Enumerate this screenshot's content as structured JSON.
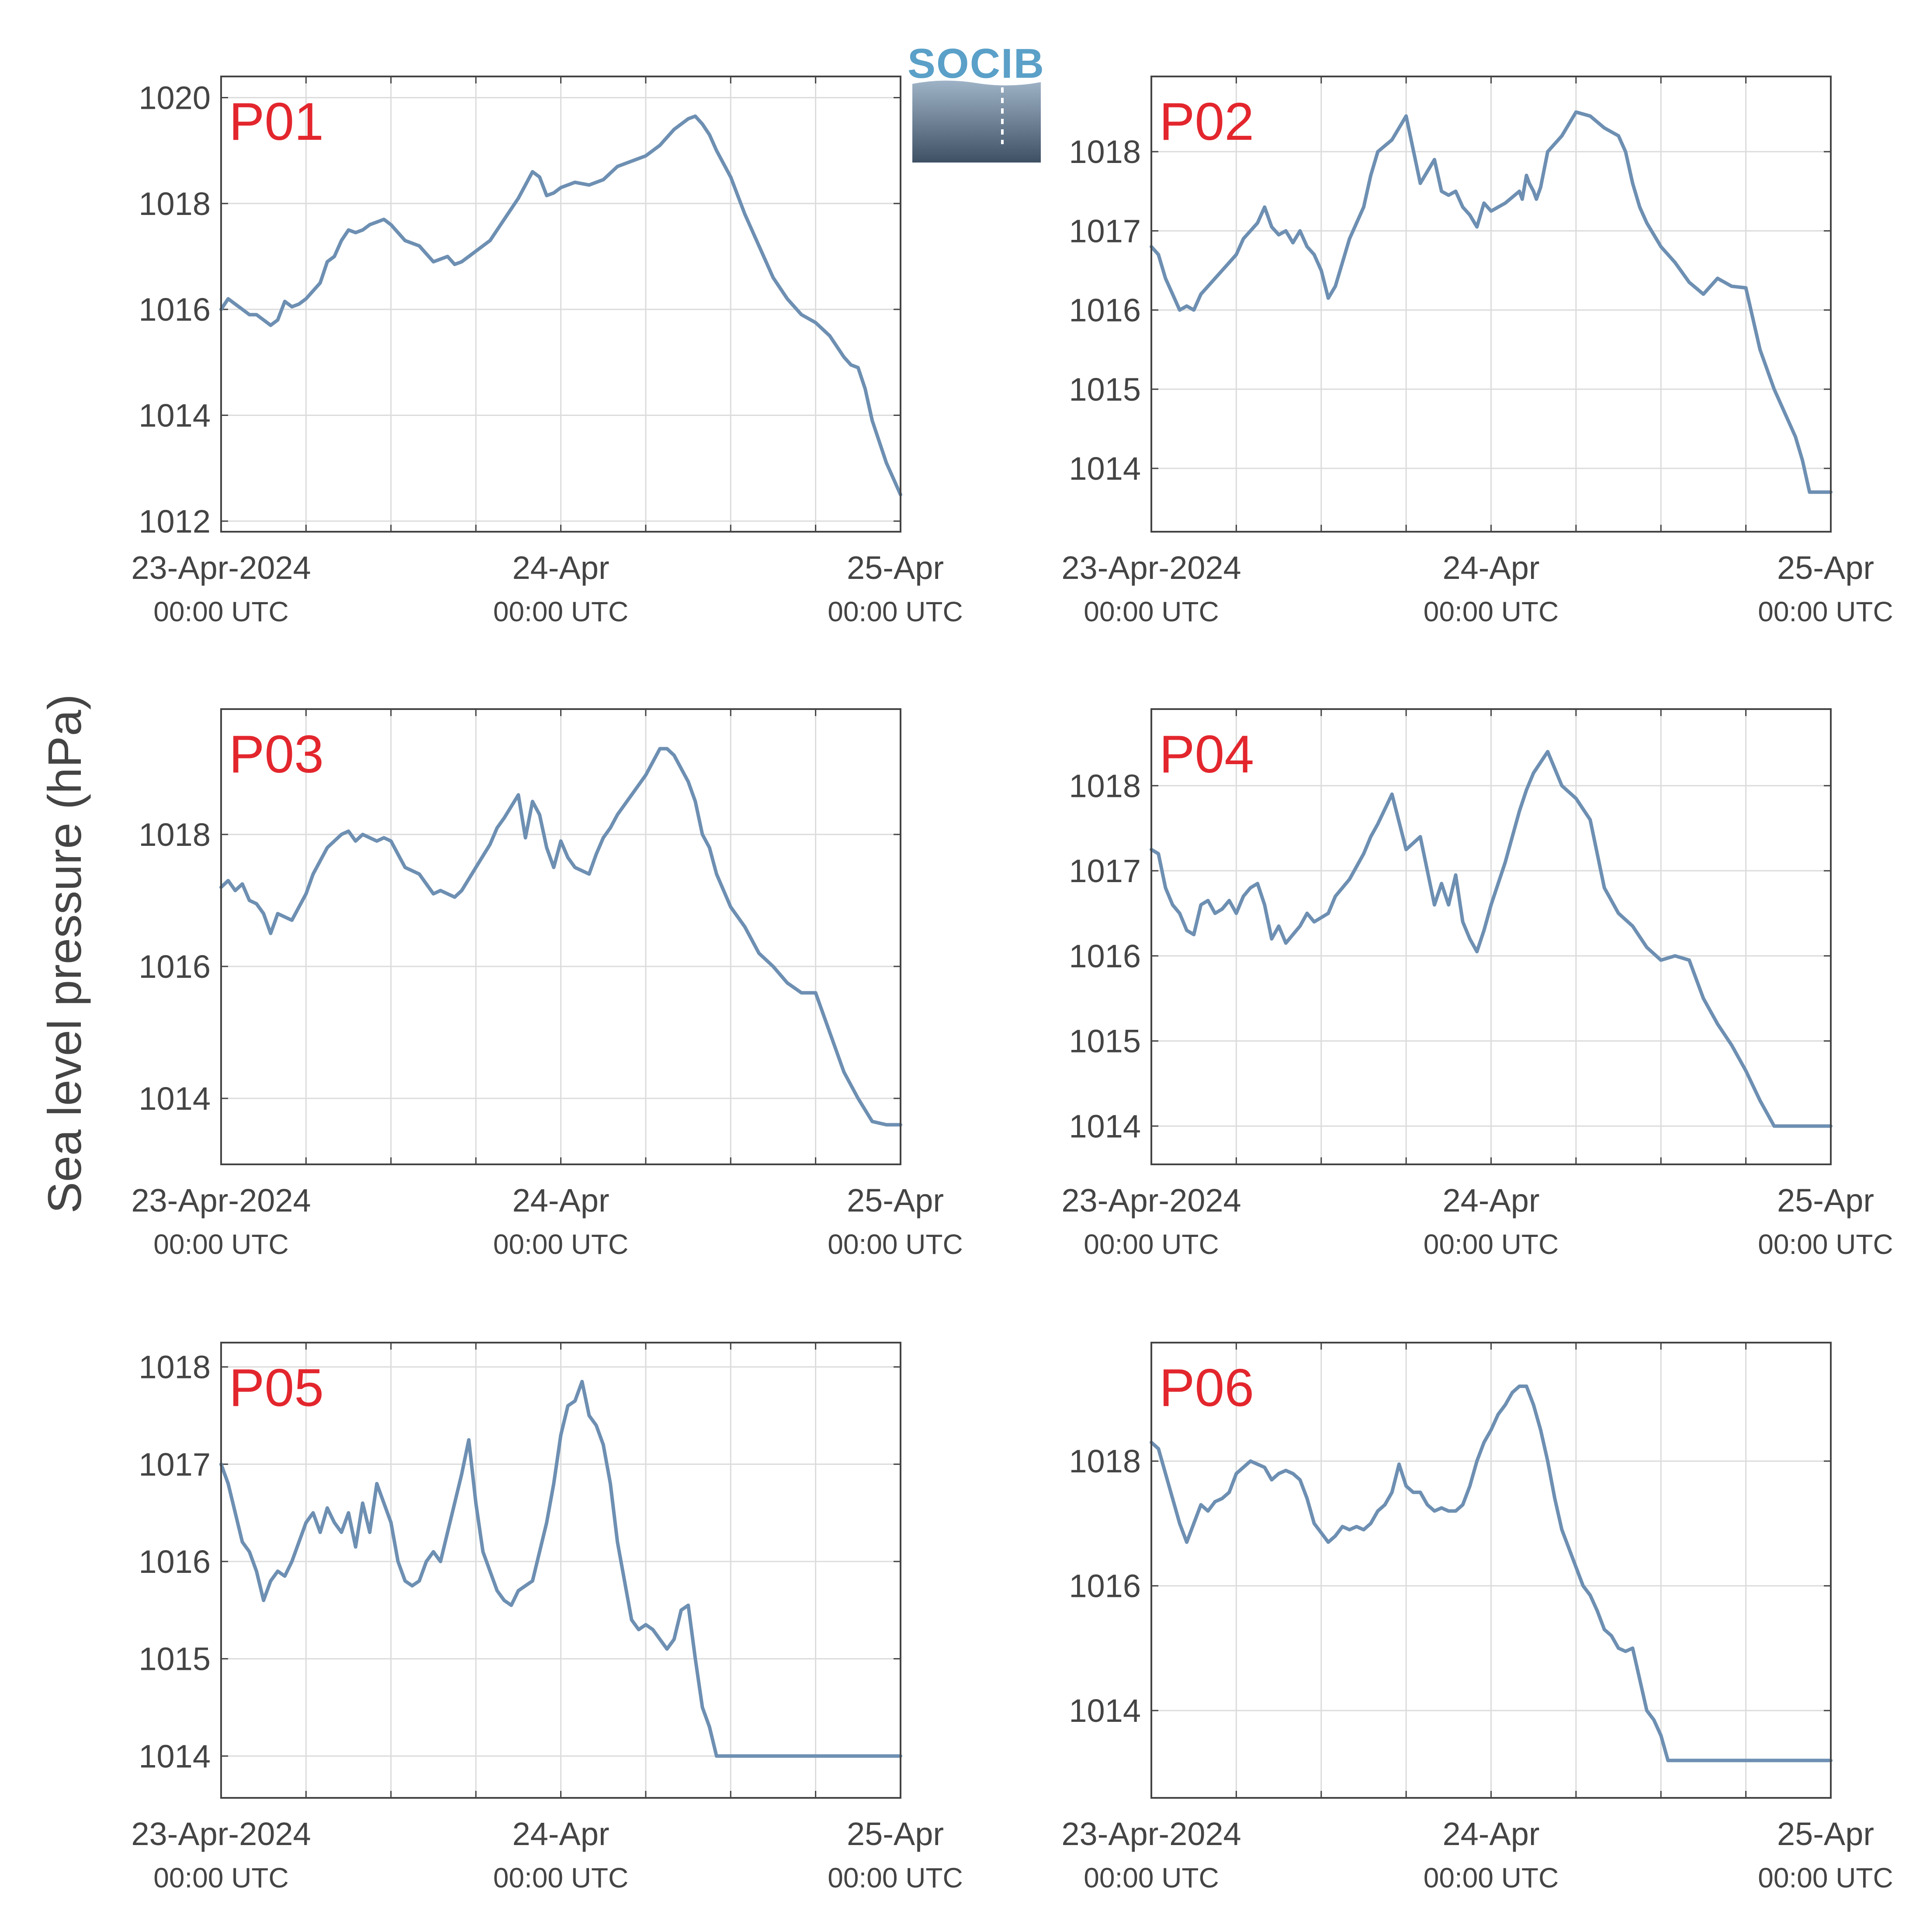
{
  "figure": {
    "ylabel": "Sea level pressure (hPa)",
    "logo_text": "SOCIB",
    "colors": {
      "line": "#6d8fb2",
      "label": "#e3262d",
      "axis": "#444444",
      "grid": "#dcdcdc"
    }
  },
  "chart_data": [
    {
      "type": "line",
      "label": "P01",
      "x_ticks": [
        "23-Apr-2024",
        "24-Apr",
        "25-Apr"
      ],
      "x_subticks": [
        "00:00 UTC",
        "00:00 UTC",
        "00:00 UTC"
      ],
      "x_range_hours": [
        0,
        48
      ],
      "ylim": [
        1011.8,
        1020.4
      ],
      "yticks": [
        1012,
        1014,
        1016,
        1018,
        1020
      ],
      "grid": true,
      "x_hours": [
        0,
        0.5,
        1,
        1.5,
        2,
        2.5,
        3,
        3.5,
        4,
        4.5,
        5,
        5.5,
        6,
        6.5,
        7,
        7.5,
        8,
        8.5,
        9,
        9.5,
        10,
        10.5,
        11,
        11.5,
        12,
        13,
        14,
        15,
        16,
        16.5,
        17,
        17.5,
        18,
        19,
        20,
        21,
        22,
        22.5,
        23,
        23.5,
        24,
        25,
        26,
        27,
        28,
        29,
        30,
        31,
        32,
        33,
        33.5,
        34,
        34.5,
        35,
        36,
        37,
        38,
        39,
        40,
        41,
        42,
        43,
        44,
        44.5,
        45,
        45.5,
        46,
        46.5,
        47,
        47.5,
        48
      ],
      "values": [
        1016.0,
        1016.2,
        1016.1,
        1016.0,
        1015.9,
        1015.9,
        1015.8,
        1015.7,
        1015.8,
        1016.15,
        1016.05,
        1016.1,
        1016.2,
        1016.35,
        1016.5,
        1016.9,
        1017.0,
        1017.3,
        1017.5,
        1017.45,
        1017.5,
        1017.6,
        1017.65,
        1017.7,
        1017.6,
        1017.3,
        1017.2,
        1016.9,
        1017.0,
        1016.85,
        1016.9,
        1017.0,
        1017.1,
        1017.3,
        1017.7,
        1018.1,
        1018.6,
        1018.5,
        1018.15,
        1018.2,
        1018.3,
        1018.4,
        1018.35,
        1018.45,
        1018.7,
        1018.8,
        1018.9,
        1019.1,
        1019.4,
        1019.6,
        1019.65,
        1019.5,
        1019.3,
        1019.0,
        1018.5,
        1017.8,
        1017.2,
        1016.6,
        1016.2,
        1015.9,
        1015.75,
        1015.5,
        1015.1,
        1014.95,
        1014.9,
        1014.5,
        1013.9,
        1013.5,
        1013.1,
        1012.8,
        1012.5
      ]
    },
    {
      "type": "line",
      "label": "P02",
      "x_ticks": [
        "23-Apr-2024",
        "24-Apr",
        "25-Apr"
      ],
      "x_subticks": [
        "00:00 UTC",
        "00:00 UTC",
        "00:00 UTC"
      ],
      "x_range_hours": [
        0,
        48
      ],
      "ylim": [
        1013.2,
        1018.95
      ],
      "yticks": [
        1014,
        1015,
        1016,
        1017,
        1018
      ],
      "grid": true,
      "x_hours": [
        0,
        0.5,
        1,
        1.5,
        2,
        2.5,
        3,
        3.5,
        4,
        4.5,
        5,
        5.5,
        6,
        6.5,
        7,
        7.5,
        8,
        8.5,
        9,
        9.5,
        10,
        10.5,
        11,
        11.5,
        12,
        12.5,
        13,
        13.5,
        14,
        15,
        15.5,
        16,
        17,
        18,
        19,
        20,
        20.5,
        21,
        21.5,
        22,
        22.5,
        23,
        23.5,
        24,
        25,
        26,
        26.2,
        26.5,
        26.7,
        27,
        27.2,
        27.5,
        28,
        29,
        30,
        31,
        32,
        33,
        33.5,
        34,
        34.5,
        35,
        36,
        37,
        38,
        39,
        40,
        41,
        42,
        43,
        44,
        45,
        45.5,
        46,
        46.5,
        47,
        47.5,
        48
      ],
      "values": [
        1016.8,
        1016.7,
        1016.4,
        1016.2,
        1016.0,
        1016.05,
        1016.0,
        1016.2,
        1016.3,
        1016.4,
        1016.5,
        1016.6,
        1016.7,
        1016.9,
        1017.0,
        1017.1,
        1017.3,
        1017.05,
        1016.95,
        1017.0,
        1016.85,
        1017.0,
        1016.8,
        1016.7,
        1016.5,
        1016.15,
        1016.3,
        1016.6,
        1016.9,
        1017.3,
        1017.7,
        1018.0,
        1018.15,
        1018.45,
        1017.6,
        1017.9,
        1017.5,
        1017.45,
        1017.5,
        1017.3,
        1017.2,
        1017.05,
        1017.35,
        1017.25,
        1017.35,
        1017.5,
        1017.4,
        1017.7,
        1017.6,
        1017.5,
        1017.4,
        1017.55,
        1018.0,
        1018.2,
        1018.5,
        1018.45,
        1018.3,
        1018.2,
        1018.0,
        1017.6,
        1017.3,
        1017.1,
        1016.8,
        1016.6,
        1016.35,
        1016.2,
        1016.4,
        1016.3,
        1016.28,
        1015.5,
        1015.0,
        1014.6,
        1014.4,
        1014.1,
        1013.7,
        1013.7,
        1013.7,
        1013.7
      ]
    },
    {
      "type": "line",
      "label": "P03",
      "x_ticks": [
        "23-Apr-2024",
        "24-Apr",
        "25-Apr"
      ],
      "x_subticks": [
        "00:00 UTC",
        "00:00 UTC",
        "00:00 UTC"
      ],
      "x_range_hours": [
        0,
        48
      ],
      "ylim": [
        1013.0,
        1019.9
      ],
      "yticks": [
        1014,
        1016,
        1018
      ],
      "grid": true,
      "x_hours": [
        0,
        0.5,
        1,
        1.5,
        2,
        2.5,
        3,
        3.5,
        4,
        4.5,
        5,
        5.5,
        6,
        6.5,
        7,
        7.5,
        8,
        8.5,
        9,
        9.5,
        10,
        10.5,
        11,
        11.5,
        12,
        12.5,
        13,
        14,
        15,
        15.5,
        16,
        16.5,
        17,
        18,
        19,
        19.5,
        20,
        21,
        21.5,
        22,
        22.5,
        23,
        23.5,
        24,
        24.5,
        25,
        25.5,
        26,
        26.5,
        27,
        27.5,
        28,
        29,
        30,
        31,
        31.5,
        32,
        33,
        33.5,
        34,
        34.5,
        35,
        36,
        37,
        38,
        39,
        40,
        41,
        42,
        43,
        44,
        45,
        46,
        47,
        48
      ],
      "values": [
        1017.2,
        1017.3,
        1017.15,
        1017.25,
        1017.0,
        1016.95,
        1016.8,
        1016.5,
        1016.8,
        1016.75,
        1016.7,
        1016.9,
        1017.1,
        1017.4,
        1017.6,
        1017.8,
        1017.9,
        1018.0,
        1018.05,
        1017.9,
        1018.0,
        1017.95,
        1017.9,
        1017.95,
        1017.9,
        1017.7,
        1017.5,
        1017.4,
        1017.1,
        1017.15,
        1017.1,
        1017.05,
        1017.15,
        1017.5,
        1017.85,
        1018.1,
        1018.25,
        1018.6,
        1017.95,
        1018.5,
        1018.3,
        1017.8,
        1017.5,
        1017.9,
        1017.65,
        1017.5,
        1017.45,
        1017.4,
        1017.7,
        1017.95,
        1018.1,
        1018.3,
        1018.6,
        1018.9,
        1019.3,
        1019.3,
        1019.2,
        1018.8,
        1018.5,
        1018.0,
        1017.8,
        1017.4,
        1016.9,
        1016.6,
        1016.2,
        1016.0,
        1015.75,
        1015.6,
        1015.6,
        1015.0,
        1014.4,
        1014.0,
        1013.65,
        1013.6,
        1013.6
      ]
    },
    {
      "type": "line",
      "label": "P04",
      "x_ticks": [
        "23-Apr-2024",
        "24-Apr",
        "25-Apr"
      ],
      "x_subticks": [
        "00:00 UTC",
        "00:00 UTC",
        "00:00 UTC"
      ],
      "x_range_hours": [
        0,
        48
      ],
      "ylim": [
        1013.55,
        1018.9
      ],
      "yticks": [
        1014,
        1015,
        1016,
        1017,
        1018
      ],
      "grid": true,
      "x_hours": [
        0,
        0.5,
        1,
        1.5,
        2,
        2.5,
        3,
        3.5,
        4,
        4.5,
        5,
        5.5,
        6,
        6.5,
        7,
        7.5,
        8,
        8.5,
        9,
        9.5,
        10,
        10.5,
        11,
        11.5,
        12,
        12.5,
        13,
        14,
        15,
        15.5,
        16,
        17,
        18,
        19,
        20,
        20.5,
        21,
        21.5,
        22,
        22.5,
        23,
        23.5,
        24,
        24.5,
        25,
        25.5,
        26,
        26.5,
        27,
        28,
        29,
        30,
        31,
        31.5,
        32,
        33,
        34,
        35,
        36,
        37,
        38,
        39,
        40,
        41,
        42,
        43,
        44,
        44.5,
        45,
        45.5,
        46,
        46.5,
        47,
        47.5,
        48
      ],
      "values": [
        1017.25,
        1017.2,
        1016.8,
        1016.6,
        1016.5,
        1016.3,
        1016.25,
        1016.6,
        1016.65,
        1016.5,
        1016.55,
        1016.65,
        1016.5,
        1016.7,
        1016.8,
        1016.85,
        1016.6,
        1016.2,
        1016.35,
        1016.15,
        1016.25,
        1016.35,
        1016.5,
        1016.4,
        1016.45,
        1016.5,
        1016.7,
        1016.9,
        1017.2,
        1017.4,
        1017.55,
        1017.9,
        1017.25,
        1017.4,
        1016.6,
        1016.85,
        1016.6,
        1016.95,
        1016.4,
        1016.2,
        1016.05,
        1016.3,
        1016.6,
        1016.85,
        1017.1,
        1017.4,
        1017.7,
        1017.95,
        1018.15,
        1018.4,
        1018.0,
        1017.85,
        1017.6,
        1017.2,
        1016.8,
        1016.5,
        1016.35,
        1016.1,
        1015.95,
        1016.0,
        1015.95,
        1015.5,
        1015.2,
        1014.95,
        1014.65,
        1014.3,
        1014.0,
        1014.0,
        1014.0,
        1014.0,
        1014.0,
        1014.0,
        1014.0,
        1014.0,
        1014.0
      ]
    },
    {
      "type": "line",
      "label": "P05",
      "x_ticks": [
        "23-Apr-2024",
        "24-Apr",
        "25-Apr"
      ],
      "x_subticks": [
        "00:00 UTC",
        "00:00 UTC",
        "00:00 UTC"
      ],
      "x_range_hours": [
        0,
        48
      ],
      "ylim": [
        1013.57,
        1018.25
      ],
      "yticks": [
        1014,
        1015,
        1016,
        1017,
        1018
      ],
      "grid": true,
      "x_hours": [
        0,
        0.5,
        1,
        1.5,
        2,
        2.5,
        3,
        3.5,
        4,
        4.5,
        5,
        5.5,
        6,
        6.5,
        7,
        7.5,
        8,
        8.5,
        9,
        9.5,
        10,
        10.5,
        11,
        11.5,
        12,
        12.5,
        13,
        13.5,
        14,
        14.5,
        15,
        15.5,
        16,
        16.5,
        17,
        17.5,
        18,
        18.5,
        19,
        19.5,
        20,
        20.5,
        21,
        21.5,
        22,
        22.5,
        23,
        23.5,
        24,
        24.5,
        25,
        25.5,
        26,
        26.5,
        27,
        27.5,
        28,
        28.5,
        29,
        29.5,
        30,
        30.5,
        31,
        31.5,
        32,
        32.5,
        33,
        33.5,
        34,
        34.5,
        35,
        35.5,
        36,
        36.5,
        37,
        37.5,
        38,
        38.5,
        39,
        39.5,
        40,
        40.5,
        41,
        41.5,
        42,
        42.5,
        43,
        43.5,
        44,
        44.5,
        45,
        45.5,
        46,
        46.5,
        47,
        47.5,
        48
      ],
      "values": [
        1017.0,
        1016.8,
        1016.5,
        1016.2,
        1016.1,
        1015.9,
        1015.6,
        1015.8,
        1015.9,
        1015.85,
        1016.0,
        1016.2,
        1016.4,
        1016.5,
        1016.3,
        1016.55,
        1016.4,
        1016.3,
        1016.5,
        1016.15,
        1016.6,
        1016.3,
        1016.8,
        1016.6,
        1016.4,
        1016.0,
        1015.8,
        1015.75,
        1015.8,
        1016.0,
        1016.1,
        1016.0,
        1016.3,
        1016.6,
        1016.9,
        1017.25,
        1016.6,
        1016.1,
        1015.9,
        1015.7,
        1015.6,
        1015.55,
        1015.7,
        1015.75,
        1015.8,
        1016.1,
        1016.4,
        1016.8,
        1017.3,
        1017.6,
        1017.65,
        1017.85,
        1017.5,
        1017.4,
        1017.2,
        1016.8,
        1016.2,
        1015.8,
        1015.4,
        1015.3,
        1015.35,
        1015.3,
        1015.2,
        1015.1,
        1015.2,
        1015.5,
        1015.55,
        1015.0,
        1014.5,
        1014.3,
        1014.0,
        1014.0,
        1014.0,
        1014.0,
        1014.0,
        1014.0,
        1014.0,
        1014.0,
        1014.0,
        1014.0,
        1014.0,
        1014.0,
        1014.0,
        1014.0,
        1014.0,
        1014.0,
        1014.0,
        1014.0,
        1014.0,
        1014.0,
        1014.0,
        1014.0,
        1014.0,
        1014.0,
        1014.0,
        1014.0,
        1014.0
      ]
    },
    {
      "type": "line",
      "label": "P06",
      "x_ticks": [
        "23-Apr-2024",
        "24-Apr",
        "25-Apr"
      ],
      "x_subticks": [
        "00:00 UTC",
        "00:00 UTC",
        "00:00 UTC"
      ],
      "x_range_hours": [
        0,
        48
      ],
      "ylim": [
        1012.6,
        1019.9
      ],
      "yticks": [
        1014,
        1016,
        1018
      ],
      "grid": true,
      "x_hours": [
        0,
        0.5,
        1,
        1.5,
        2,
        2.5,
        3,
        3.5,
        4,
        4.5,
        5,
        5.5,
        6,
        6.5,
        7,
        7.5,
        8,
        8.5,
        9,
        9.5,
        10,
        10.5,
        11,
        11.5,
        12,
        12.5,
        13,
        13.5,
        14,
        14.5,
        15,
        15.5,
        16,
        16.5,
        17,
        17.5,
        18,
        18.5,
        19,
        19.5,
        20,
        20.5,
        21,
        21.5,
        22,
        22.5,
        23,
        23.5,
        24,
        24.5,
        25,
        25.5,
        26,
        26.5,
        27,
        27.5,
        28,
        28.5,
        29,
        29.5,
        30,
        30.5,
        31,
        31.5,
        32,
        32.5,
        33,
        33.5,
        34,
        34.5,
        35,
        35.5,
        36,
        36.5,
        37,
        37.5,
        38,
        38.5,
        39,
        39.5,
        40,
        40.5,
        41,
        41.5,
        42,
        42.5,
        43,
        43.5,
        44,
        44.5,
        45,
        45.5,
        46,
        46.5,
        47,
        47.5,
        48
      ],
      "values": [
        1018.3,
        1018.2,
        1017.8,
        1017.4,
        1017.0,
        1016.7,
        1017.0,
        1017.3,
        1017.2,
        1017.35,
        1017.4,
        1017.5,
        1017.8,
        1017.9,
        1018.0,
        1017.95,
        1017.9,
        1017.7,
        1017.8,
        1017.85,
        1017.8,
        1017.7,
        1017.4,
        1017.0,
        1016.85,
        1016.7,
        1016.8,
        1016.95,
        1016.9,
        1016.95,
        1016.9,
        1017.0,
        1017.2,
        1017.3,
        1017.5,
        1017.95,
        1017.6,
        1017.5,
        1017.5,
        1017.3,
        1017.2,
        1017.25,
        1017.2,
        1017.2,
        1017.3,
        1017.6,
        1018.0,
        1018.3,
        1018.5,
        1018.75,
        1018.9,
        1019.1,
        1019.2,
        1019.2,
        1018.9,
        1018.5,
        1018.0,
        1017.4,
        1016.9,
        1016.6,
        1016.3,
        1016.0,
        1015.85,
        1015.6,
        1015.3,
        1015.2,
        1015.0,
        1014.95,
        1015.0,
        1014.5,
        1014.0,
        1013.85,
        1013.6,
        1013.2,
        1013.2,
        1013.2,
        1013.2,
        1013.2,
        1013.2,
        1013.2,
        1013.2,
        1013.2,
        1013.2,
        1013.2,
        1013.2,
        1013.2,
        1013.2,
        1013.2,
        1013.2,
        1013.2,
        1013.2,
        1013.2,
        1013.2,
        1013.2,
        1013.2,
        1013.2,
        1013.2
      ]
    }
  ]
}
